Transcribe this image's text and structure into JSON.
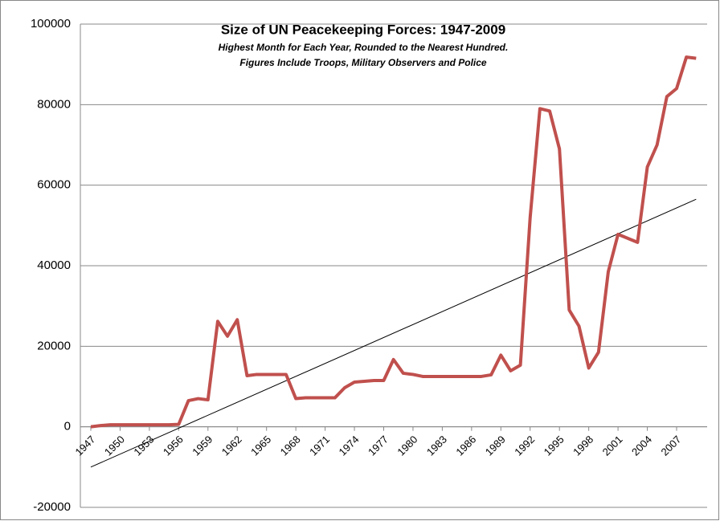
{
  "chart_data": {
    "type": "line",
    "title": "Size of UN Peacekeeping Forces: 1947-2009",
    "subtitle": [
      "Highest Month for Each Year, Rounded to the Nearest Hundred.",
      "Figures Include Troops, Military Observers and Police"
    ],
    "categories": [
      1947,
      null,
      null,
      1950,
      null,
      null,
      1953,
      null,
      null,
      1956,
      null,
      null,
      1959,
      null,
      null,
      1962,
      null,
      null,
      1965,
      null,
      null,
      1968,
      null,
      null,
      1971,
      null,
      null,
      1974,
      null,
      null,
      1977,
      null,
      null,
      1980,
      null,
      null,
      1983,
      null,
      null,
      1986,
      null,
      null,
      1989,
      null,
      null,
      1992,
      null,
      null,
      1995,
      null,
      null,
      1998,
      null,
      null,
      2001,
      null,
      null,
      2004,
      null,
      null,
      2007,
      null,
      null
    ],
    "series": [
      {
        "color": "#c0504d",
        "values": [
          0,
          300,
          500,
          500,
          500,
          500,
          500,
          500,
          500,
          600,
          6500,
          7000,
          6700,
          26200,
          22500,
          26600,
          12700,
          13000,
          13000,
          13000,
          13000,
          7000,
          7200,
          7200,
          7200,
          7200,
          9700,
          11100,
          11300,
          11500,
          11500,
          16700,
          13300,
          13000,
          12500,
          12500,
          12500,
          12500,
          12500,
          12500,
          12500,
          12900,
          17800,
          13900,
          15300,
          52000,
          79000,
          78400,
          69000,
          29000,
          25000,
          14600,
          18500,
          38500,
          47800,
          46800,
          45800,
          64500,
          70000,
          82000,
          84000,
          91800,
          91500
        ]
      }
    ],
    "trendline": {
      "color": "#000000",
      "values": [
        -10000,
        56500
      ]
    },
    "ylim": [
      -20000,
      100000
    ],
    "yticks": [
      -20000,
      0,
      20000,
      40000,
      60000,
      80000,
      100000
    ],
    "grid": true
  }
}
